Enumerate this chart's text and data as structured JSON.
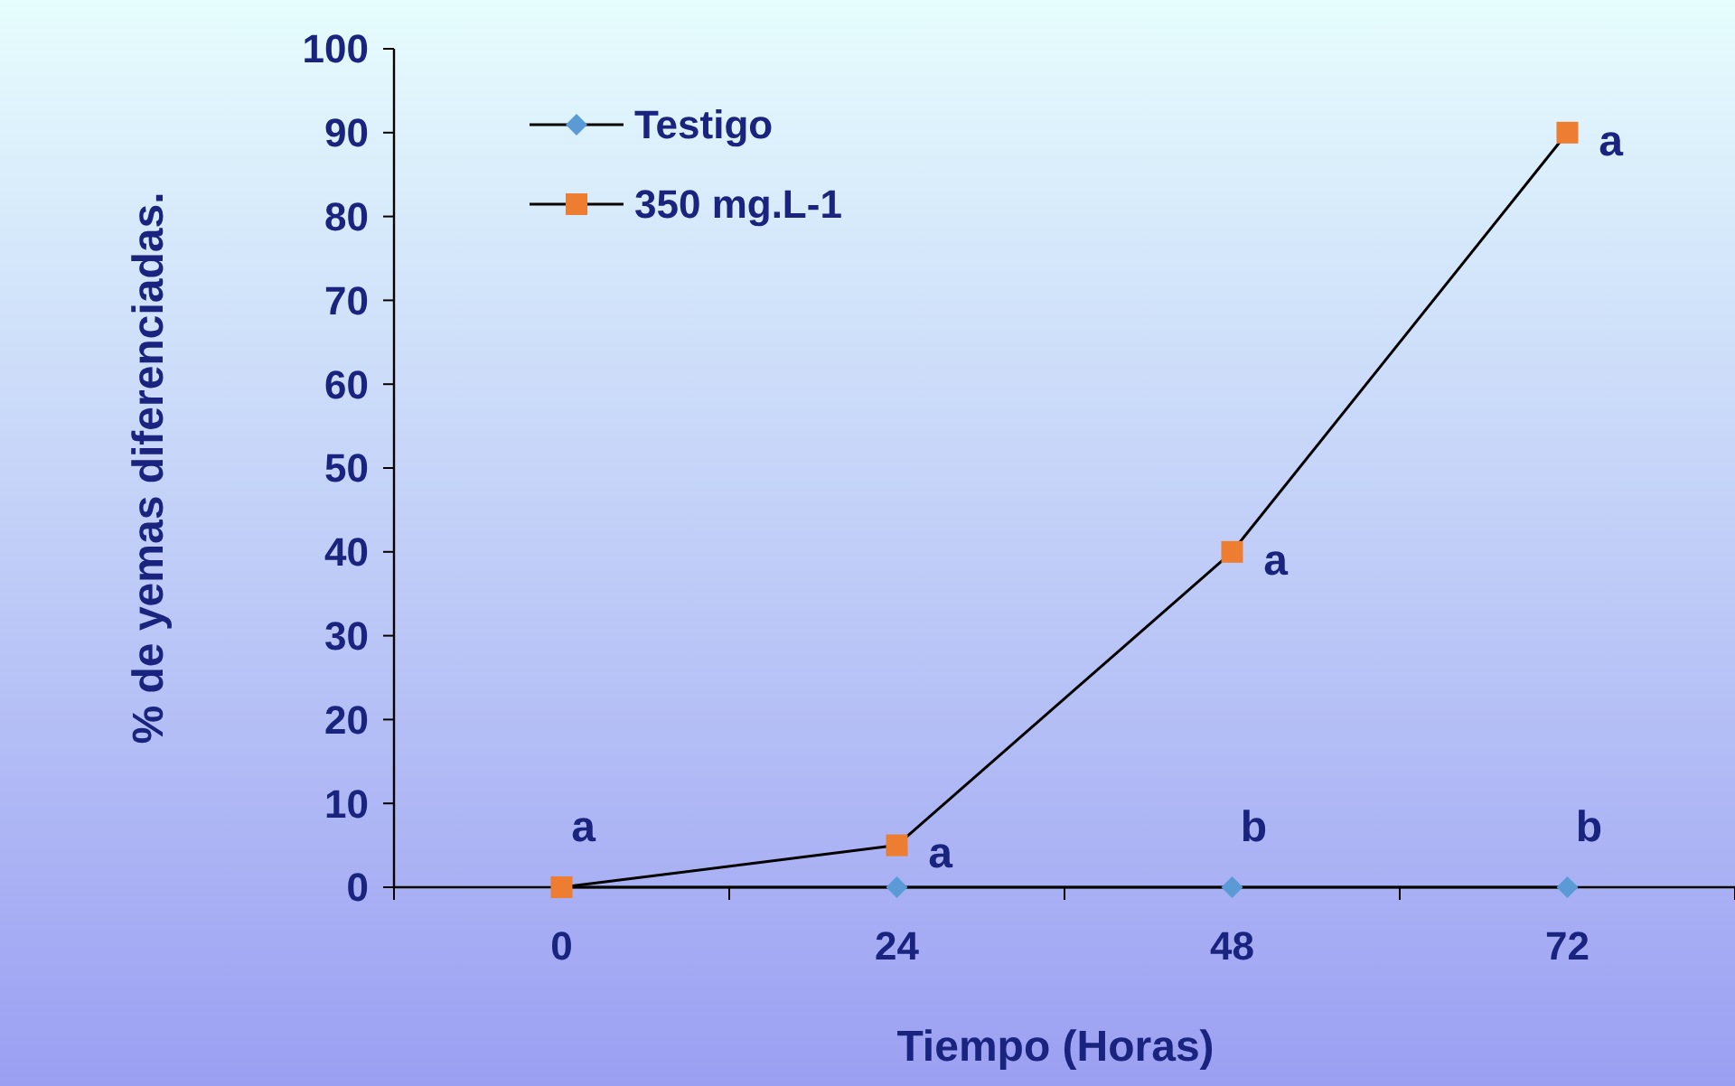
{
  "chart_data": {
    "type": "line",
    "xlabel": "Tiempo (Horas)",
    "ylabel": "% de yemas diferenciadas.",
    "categories": [
      "0",
      "24",
      "48",
      "72"
    ],
    "series": [
      {
        "name": "Testigo",
        "color": "#5b9bd5",
        "marker": "diamond",
        "values": [
          0,
          0,
          0,
          0
        ]
      },
      {
        "name": "350 mg.L-1",
        "color": "#ed7d31",
        "marker": "square",
        "values": [
          0,
          5,
          40,
          90
        ]
      }
    ],
    "ylim": [
      0,
      100
    ],
    "yticks": [
      0,
      10,
      20,
      30,
      40,
      50,
      60,
      70,
      80,
      90,
      100
    ],
    "legend": "top left",
    "grid": false,
    "annotations": [
      {
        "text": "a",
        "x": "0",
        "y": 0
      },
      {
        "text": "a",
        "x": "24",
        "y": 5
      },
      {
        "text": "b",
        "x": "48",
        "y": 0
      },
      {
        "text": "a",
        "x": "48",
        "y": 40
      },
      {
        "text": "b",
        "x": "72",
        "y": 0
      },
      {
        "text": "a",
        "x": "72",
        "y": 90
      }
    ]
  }
}
